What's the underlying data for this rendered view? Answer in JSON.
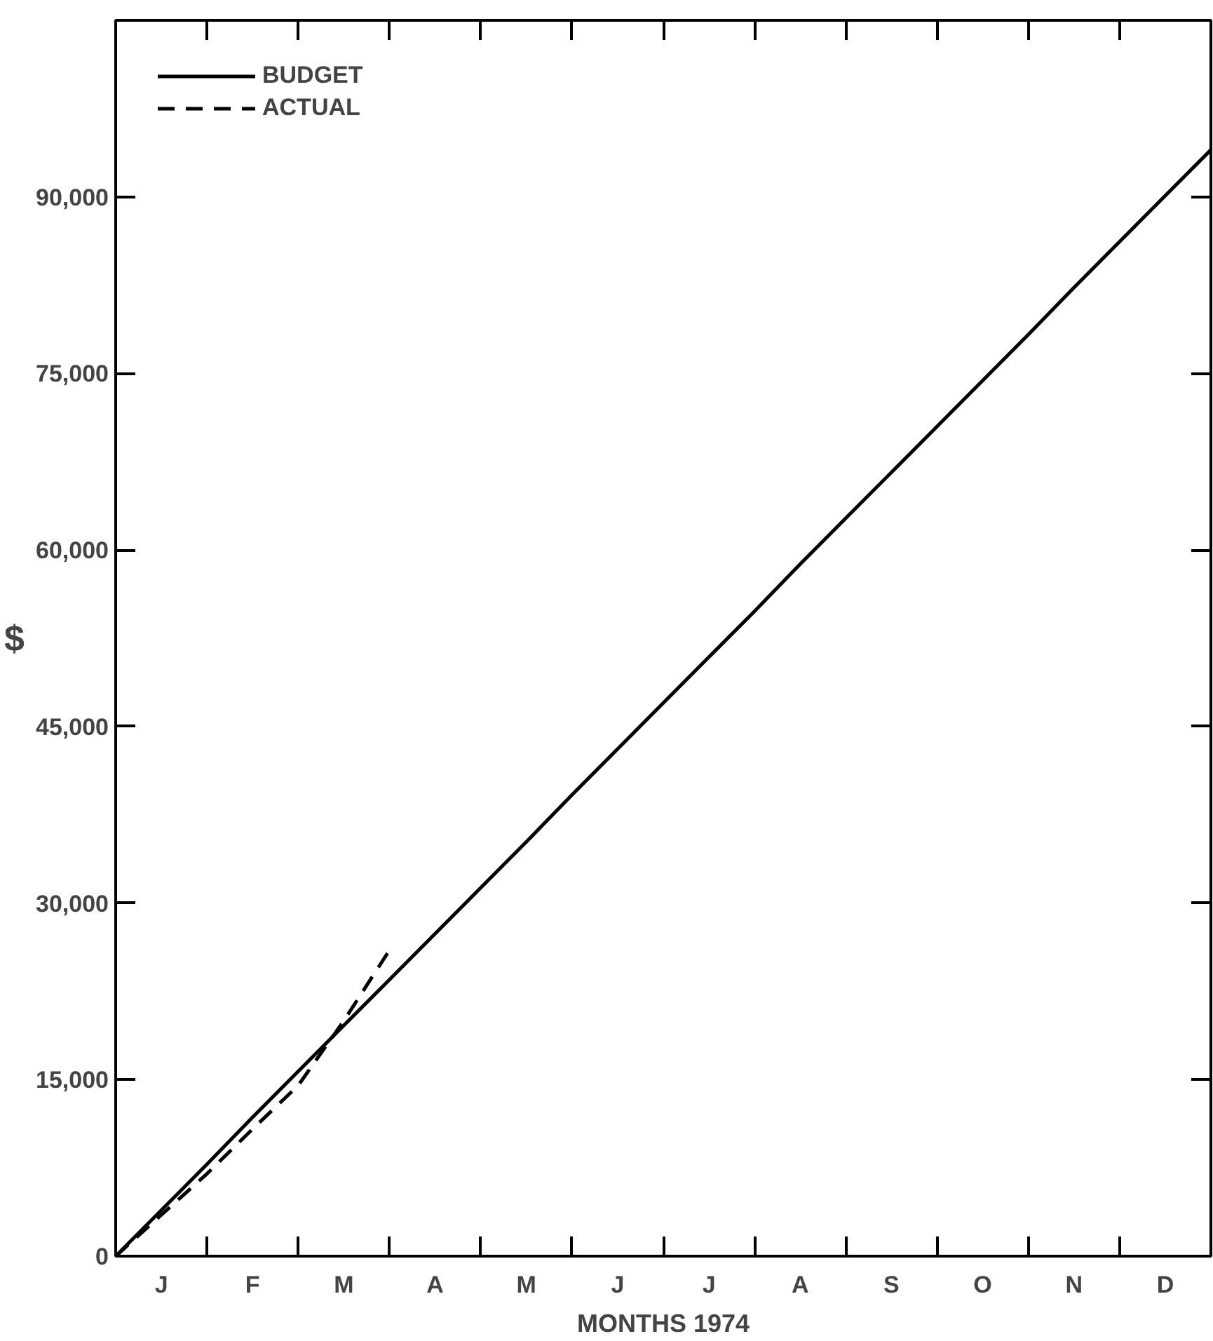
{
  "chart_data": {
    "type": "line",
    "xlabel": "MONTHS 1974",
    "ylabel": "$",
    "categories": [
      null,
      "J",
      null,
      "F",
      null,
      "M",
      null,
      "A",
      null,
      "M",
      null,
      "J",
      null,
      "J",
      null,
      "A",
      null,
      "S",
      null,
      "O",
      null,
      "N",
      null,
      "D",
      null
    ],
    "ylim": [
      0,
      105000
    ],
    "yticks": [
      0,
      {
        "value": 15000,
        "label": "15,000"
      },
      {
        "value": 30000,
        "label": "30,000"
      },
      {
        "value": 45000,
        "label": "45,000"
      },
      {
        "value": 60000,
        "label": "60,000"
      },
      {
        "value": 75000,
        "label": "75,000"
      },
      {
        "value": 90000,
        "label": "90,000"
      }
    ],
    "grid": false,
    "legend": "top left",
    "series": [
      {
        "name": "BUDGET",
        "color": "#000000",
        "line_style": "solid",
        "values": [
          0,
          3900,
          7800,
          11800,
          15700,
          19600,
          23500,
          27400,
          31300,
          35200,
          39200,
          43100,
          47000,
          50900,
          54800,
          58800,
          62700,
          66600,
          70500,
          74400,
          78300,
          82300,
          86200,
          90100,
          94000
        ]
      },
      {
        "name": "ACTUAL",
        "color": "#000000",
        "line_style": "dashed",
        "values": [
          0,
          3500,
          7000,
          10800,
          14500,
          20000,
          26000,
          null,
          null,
          null,
          null,
          null,
          null,
          null,
          null,
          null,
          null,
          null,
          null,
          null,
          null,
          null,
          null,
          null,
          null
        ]
      }
    ]
  }
}
